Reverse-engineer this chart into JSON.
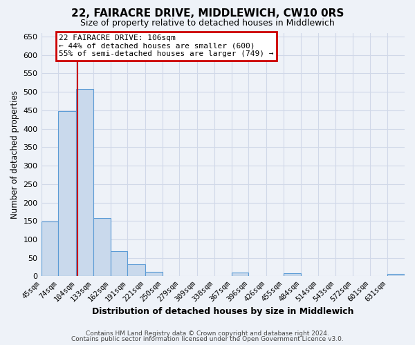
{
  "title": "22, FAIRACRE DRIVE, MIDDLEWICH, CW10 0RS",
  "subtitle": "Size of property relative to detached houses in Middlewich",
  "xlabel": "Distribution of detached houses by size in Middlewich",
  "ylabel": "Number of detached properties",
  "bin_labels": [
    "45sqm",
    "74sqm",
    "104sqm",
    "133sqm",
    "162sqm",
    "191sqm",
    "221sqm",
    "250sqm",
    "279sqm",
    "309sqm",
    "338sqm",
    "367sqm",
    "396sqm",
    "426sqm",
    "455sqm",
    "484sqm",
    "514sqm",
    "543sqm",
    "572sqm",
    "601sqm",
    "631sqm"
  ],
  "bin_edges": [
    45,
    74,
    104,
    133,
    162,
    191,
    221,
    250,
    279,
    309,
    338,
    367,
    396,
    426,
    455,
    484,
    514,
    543,
    572,
    601,
    631,
    660
  ],
  "bar_heights": [
    148,
    448,
    507,
    158,
    68,
    32,
    13,
    0,
    0,
    0,
    0,
    10,
    0,
    0,
    8,
    0,
    0,
    0,
    0,
    0,
    7
  ],
  "bar_color": "#c9d9ec",
  "bar_edge_color": "#5b9bd5",
  "ylim": [
    0,
    660
  ],
  "yticks": [
    0,
    50,
    100,
    150,
    200,
    250,
    300,
    350,
    400,
    450,
    500,
    550,
    600,
    650
  ],
  "red_line_x": 106,
  "annotation_title": "22 FAIRACRE DRIVE: 106sqm",
  "annotation_line1": "← 44% of detached houses are smaller (600)",
  "annotation_line2": "55% of semi-detached houses are larger (749) →",
  "annotation_box_color": "#ffffff",
  "annotation_border_color": "#cc0000",
  "grid_color": "#d0d8e8",
  "background_color": "#eef2f8",
  "footer1": "Contains HM Land Registry data © Crown copyright and database right 2024.",
  "footer2": "Contains public sector information licensed under the Open Government Licence v3.0."
}
